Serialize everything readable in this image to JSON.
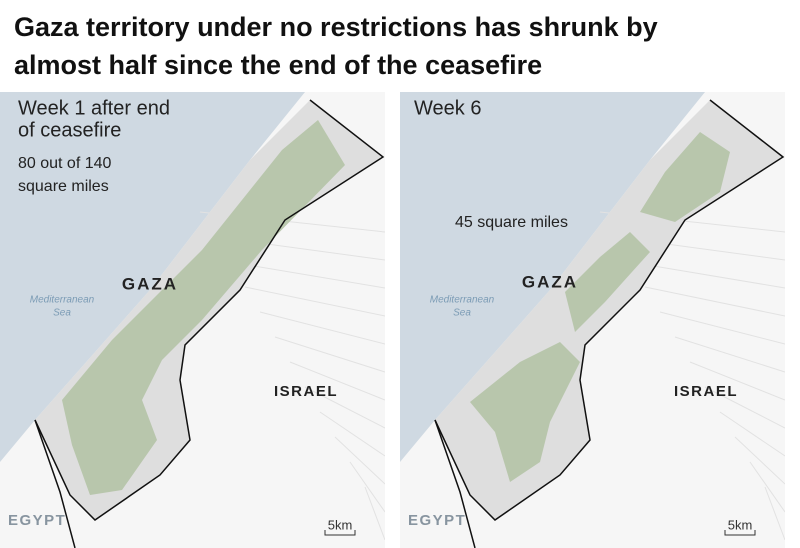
{
  "title": "Gaza territory under no restrictions has shrunk by almost half since the end of the ceasefire",
  "panels": [
    {
      "heading": [
        "Week 1 after end",
        "of ceasefire"
      ],
      "note": [
        "80 out of 140",
        "square miles"
      ],
      "region_label": "GAZA",
      "sea_label": [
        "Mediterranean",
        "Sea"
      ],
      "israel_label": "ISRAEL",
      "egypt_label": "EGYPT",
      "scale_label": "5km"
    },
    {
      "heading": [
        "Week 6"
      ],
      "note": [
        "45 square miles"
      ],
      "region_label": "GAZA",
      "sea_label": [
        "Mediterranean",
        "Sea"
      ],
      "israel_label": "ISRAEL",
      "egypt_label": "EGYPT",
      "scale_label": "5km"
    }
  ]
}
